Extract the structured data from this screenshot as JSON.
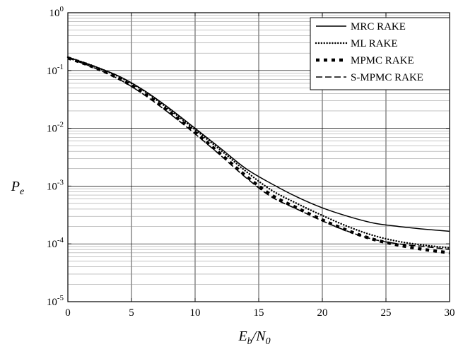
{
  "chart_data": {
    "type": "line",
    "title": "",
    "xlabel": {
      "main": "E",
      "sub1": "b",
      "sep": "/N",
      "sub2": "0"
    },
    "ylabel": {
      "main": "P",
      "sub": "e"
    },
    "x_scale": "linear",
    "y_scale": "log",
    "xlim": [
      0,
      30
    ],
    "ylim": [
      1e-05,
      1
    ],
    "x_ticks": [
      0,
      5,
      10,
      15,
      20,
      25,
      30
    ],
    "y_ticks": [
      {
        "value": 1,
        "base": "10",
        "exp": "0"
      },
      {
        "value": 0.1,
        "base": "10",
        "exp": "-1"
      },
      {
        "value": 0.01,
        "base": "10",
        "exp": "-2"
      },
      {
        "value": 0.001,
        "base": "10",
        "exp": "-3"
      },
      {
        "value": 0.0001,
        "base": "10",
        "exp": "-4"
      },
      {
        "value": 1e-05,
        "base": "10",
        "exp": "-5"
      }
    ],
    "grid": true,
    "legend_position": "top-right",
    "series": [
      {
        "name": "MRC RAKE",
        "style": "solid",
        "x": [
          0,
          2,
          4,
          6,
          8,
          10,
          12,
          14,
          16,
          18,
          20,
          22,
          24,
          26,
          28,
          30
        ],
        "y": [
          0.17,
          0.12,
          0.08,
          0.045,
          0.022,
          0.01,
          0.0045,
          0.002,
          0.0011,
          0.00065,
          0.00042,
          0.0003,
          0.00023,
          0.0002,
          0.00018,
          0.000165
        ]
      },
      {
        "name": "ML RAKE",
        "style": "dotted",
        "x": [
          0,
          2,
          4,
          6,
          8,
          10,
          12,
          14,
          16,
          18,
          20,
          22,
          24,
          26,
          28,
          30
        ],
        "y": [
          0.17,
          0.12,
          0.078,
          0.044,
          0.021,
          0.0095,
          0.0042,
          0.0018,
          0.00085,
          0.0005,
          0.00031,
          0.0002,
          0.00014,
          0.00011,
          9.5e-05,
          8.5e-05
        ]
      },
      {
        "name": "MPMC RAKE",
        "style": "thick-dash",
        "x": [
          0,
          2,
          4,
          6,
          8,
          10,
          12,
          14,
          16,
          18,
          20,
          22,
          24,
          26,
          28,
          30
        ],
        "y": [
          0.165,
          0.115,
          0.073,
          0.04,
          0.019,
          0.0085,
          0.0036,
          0.0015,
          0.0007,
          0.00042,
          0.00026,
          0.00017,
          0.00012,
          9.5e-05,
          8e-05,
          7e-05
        ]
      },
      {
        "name": "S-MPMC RAKE",
        "style": "dashed",
        "x": [
          0,
          2,
          4,
          6,
          8,
          10,
          12,
          14,
          16,
          18,
          20,
          22,
          24,
          26,
          28,
          30
        ],
        "y": [
          0.165,
          0.113,
          0.071,
          0.038,
          0.018,
          0.008,
          0.0034,
          0.0014,
          0.00065,
          0.0004,
          0.00025,
          0.000165,
          0.00012,
          0.0001,
          9e-05,
          8e-05
        ]
      }
    ]
  }
}
